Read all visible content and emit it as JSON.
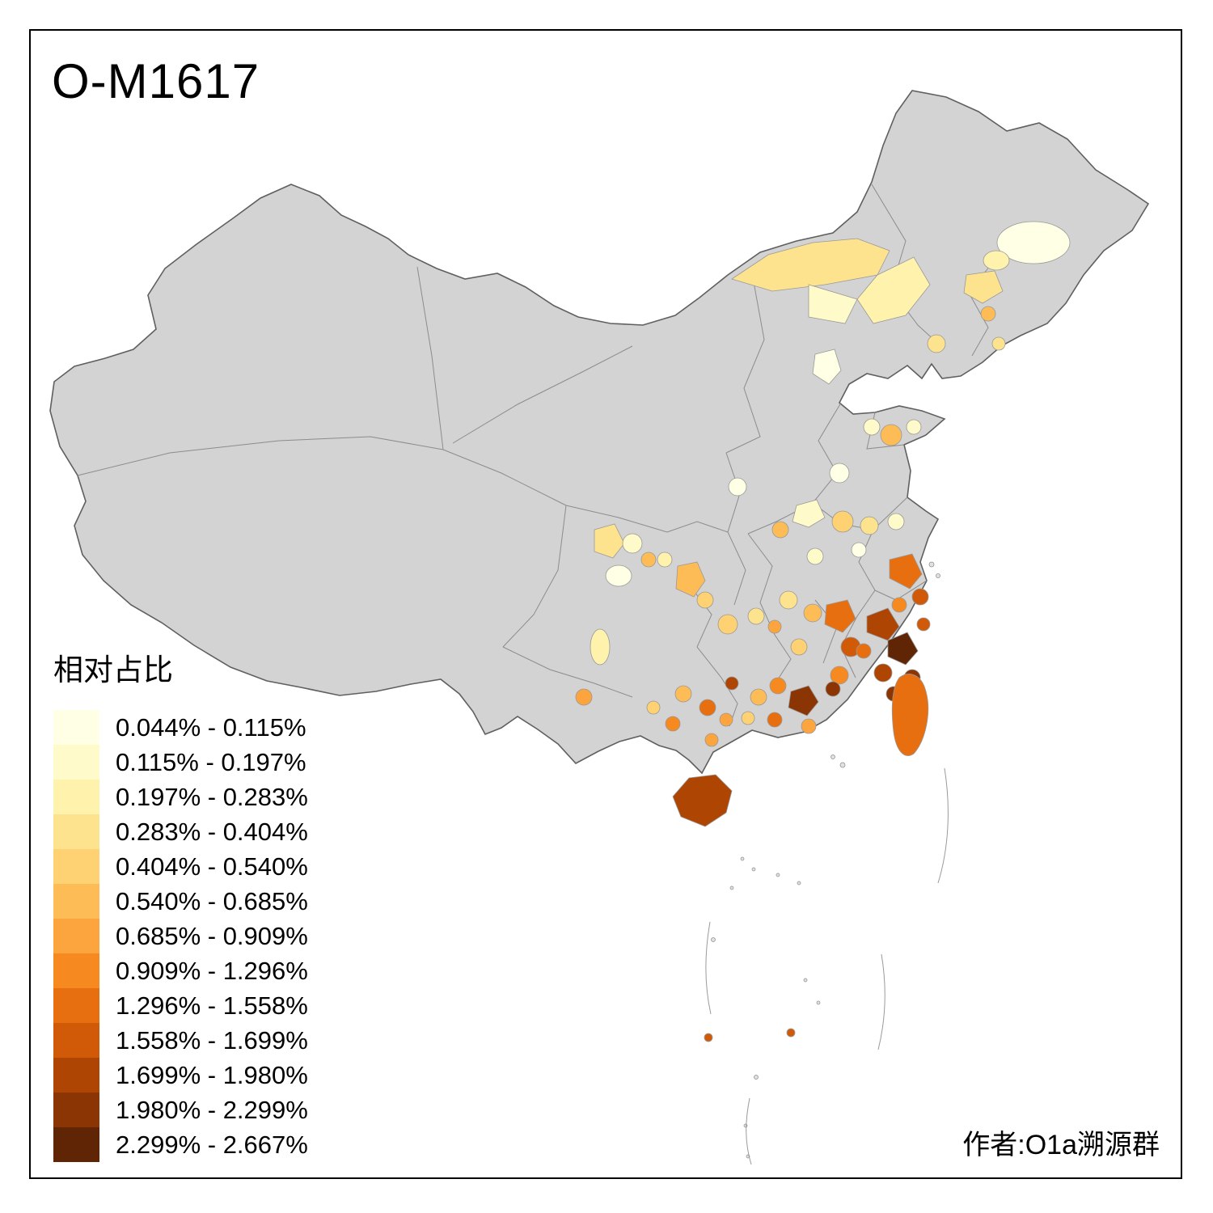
{
  "title": "O-M1617",
  "attribution": "作者:O1a溯源群",
  "legend": {
    "title": "相对占比",
    "classes": [
      {
        "label": "0.044% - 0.115%",
        "color": "#FFFFE5"
      },
      {
        "label": "0.115% - 0.197%",
        "color": "#FFFAC9"
      },
      {
        "label": "0.197% - 0.283%",
        "color": "#FEF2AC"
      },
      {
        "label": "0.283% - 0.404%",
        "color": "#FEE38F"
      },
      {
        "label": "0.404% - 0.540%",
        "color": "#FED272"
      },
      {
        "label": "0.540% - 0.685%",
        "color": "#FDBC56"
      },
      {
        "label": "0.685% - 0.909%",
        "color": "#FCA43D"
      },
      {
        "label": "0.909% - 1.296%",
        "color": "#F68A21"
      },
      {
        "label": "1.296% - 1.558%",
        "color": "#E86F10"
      },
      {
        "label": "1.558% - 1.699%",
        "color": "#D05A07"
      },
      {
        "label": "1.699% - 1.980%",
        "color": "#AE4503"
      },
      {
        "label": "1.980% - 2.299%",
        "color": "#8A3503"
      },
      {
        "label": "2.299% - 2.667%",
        "color": "#5F2505"
      }
    ]
  },
  "map": {
    "land_color": "#d3d3d3",
    "outline_color": "#5f5f5f",
    "province_border_color": "#8c8c8c",
    "region_stroke_color": "#999999"
  }
}
